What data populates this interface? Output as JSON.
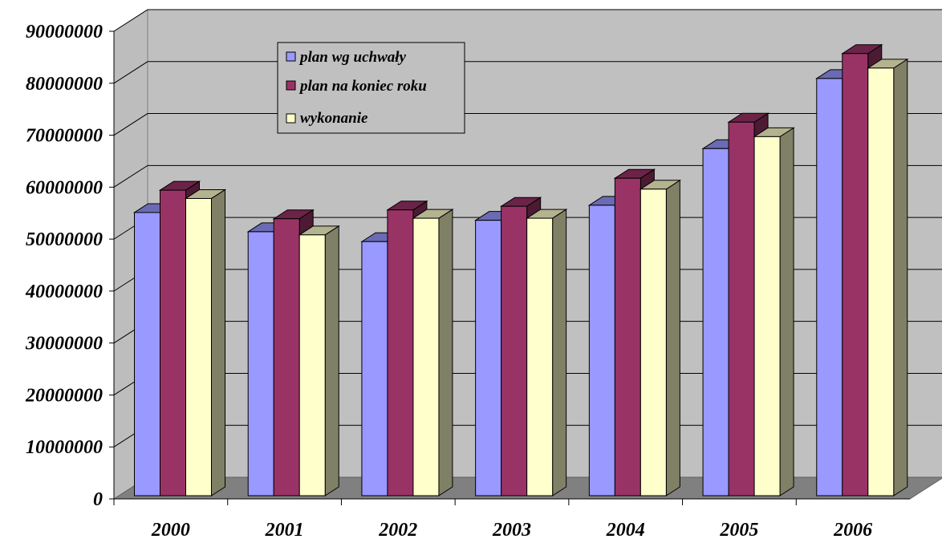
{
  "chart_data": {
    "type": "bar",
    "categories": [
      "2000",
      "2001",
      "2002",
      "2003",
      "2004",
      "2005",
      "2006"
    ],
    "series": [
      {
        "name": "plan wg uchwały",
        "color": "#9999ff",
        "values": [
          54500000,
          50800000,
          48900000,
          53000000,
          55900000,
          66800000,
          80300000
        ]
      },
      {
        "name": "plan na koniec roku",
        "color": "#993366",
        "values": [
          58800000,
          53300000,
          55000000,
          55700000,
          61100000,
          71900000,
          85100000
        ]
      },
      {
        "name": "wykonanie",
        "color": "#ffffcc",
        "values": [
          57200000,
          50200000,
          53400000,
          53400000,
          59000000,
          69100000,
          82300000
        ]
      }
    ],
    "yticks": [
      "0",
      "10000000",
      "20000000",
      "30000000",
      "40000000",
      "50000000",
      "60000000",
      "70000000",
      "80000000",
      "90000000"
    ],
    "ylim": [
      0,
      90000000
    ],
    "title": "",
    "xlabel": "",
    "ylabel": "",
    "grid": true,
    "legend_position": "top-left inside plot",
    "colors": {
      "wall": "#c0c0c0",
      "floor": "#808080",
      "gridline": "#000000"
    }
  }
}
